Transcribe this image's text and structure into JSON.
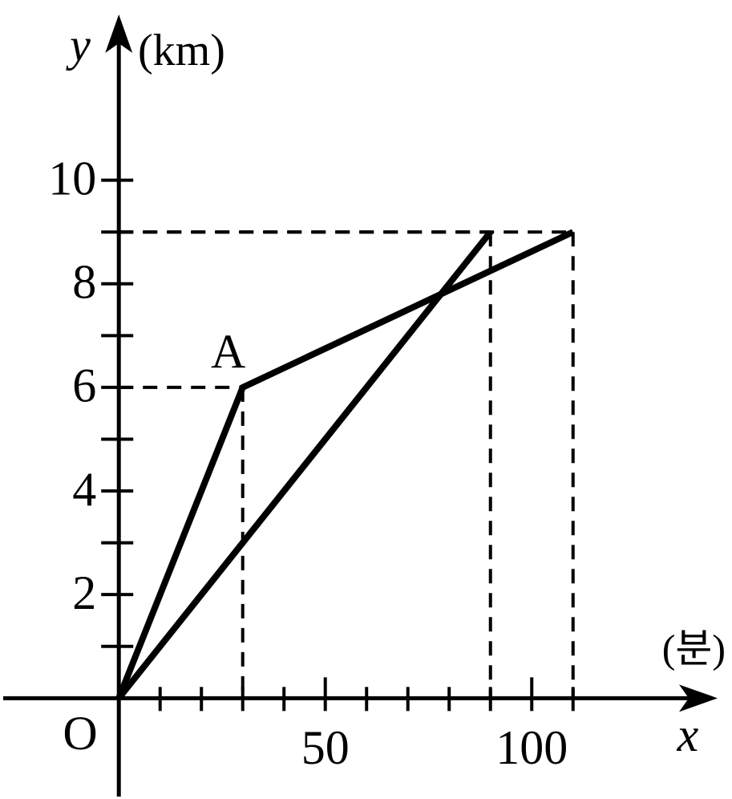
{
  "chart_data": {
    "type": "line",
    "x_label": "x",
    "x_unit": "(분)",
    "y_label": "y",
    "y_unit": "(km)",
    "origin_label": "O",
    "series": [
      {
        "x": [
          0,
          30,
          110
        ],
        "values": [
          0,
          6,
          9
        ],
        "color": "#000000"
      },
      {
        "x": [
          0,
          90
        ],
        "values": [
          0,
          9
        ],
        "color": "#000000"
      }
    ],
    "annotations": [
      {
        "text": "A",
        "x": 30,
        "y": 6
      }
    ],
    "guides": {
      "x": [
        30,
        90,
        110
      ],
      "y": [
        6,
        9,
        9
      ]
    },
    "xlim": [
      -28,
      145
    ],
    "ylim": [
      -1.9,
      13.2
    ],
    "xticks": [
      50,
      100
    ],
    "xminorticks": [
      10,
      20,
      30,
      40,
      60,
      70,
      80,
      90,
      110
    ],
    "yticks": [
      2,
      4,
      6,
      8,
      10
    ],
    "yminorticks": [
      1,
      3,
      5,
      7,
      9
    ]
  }
}
